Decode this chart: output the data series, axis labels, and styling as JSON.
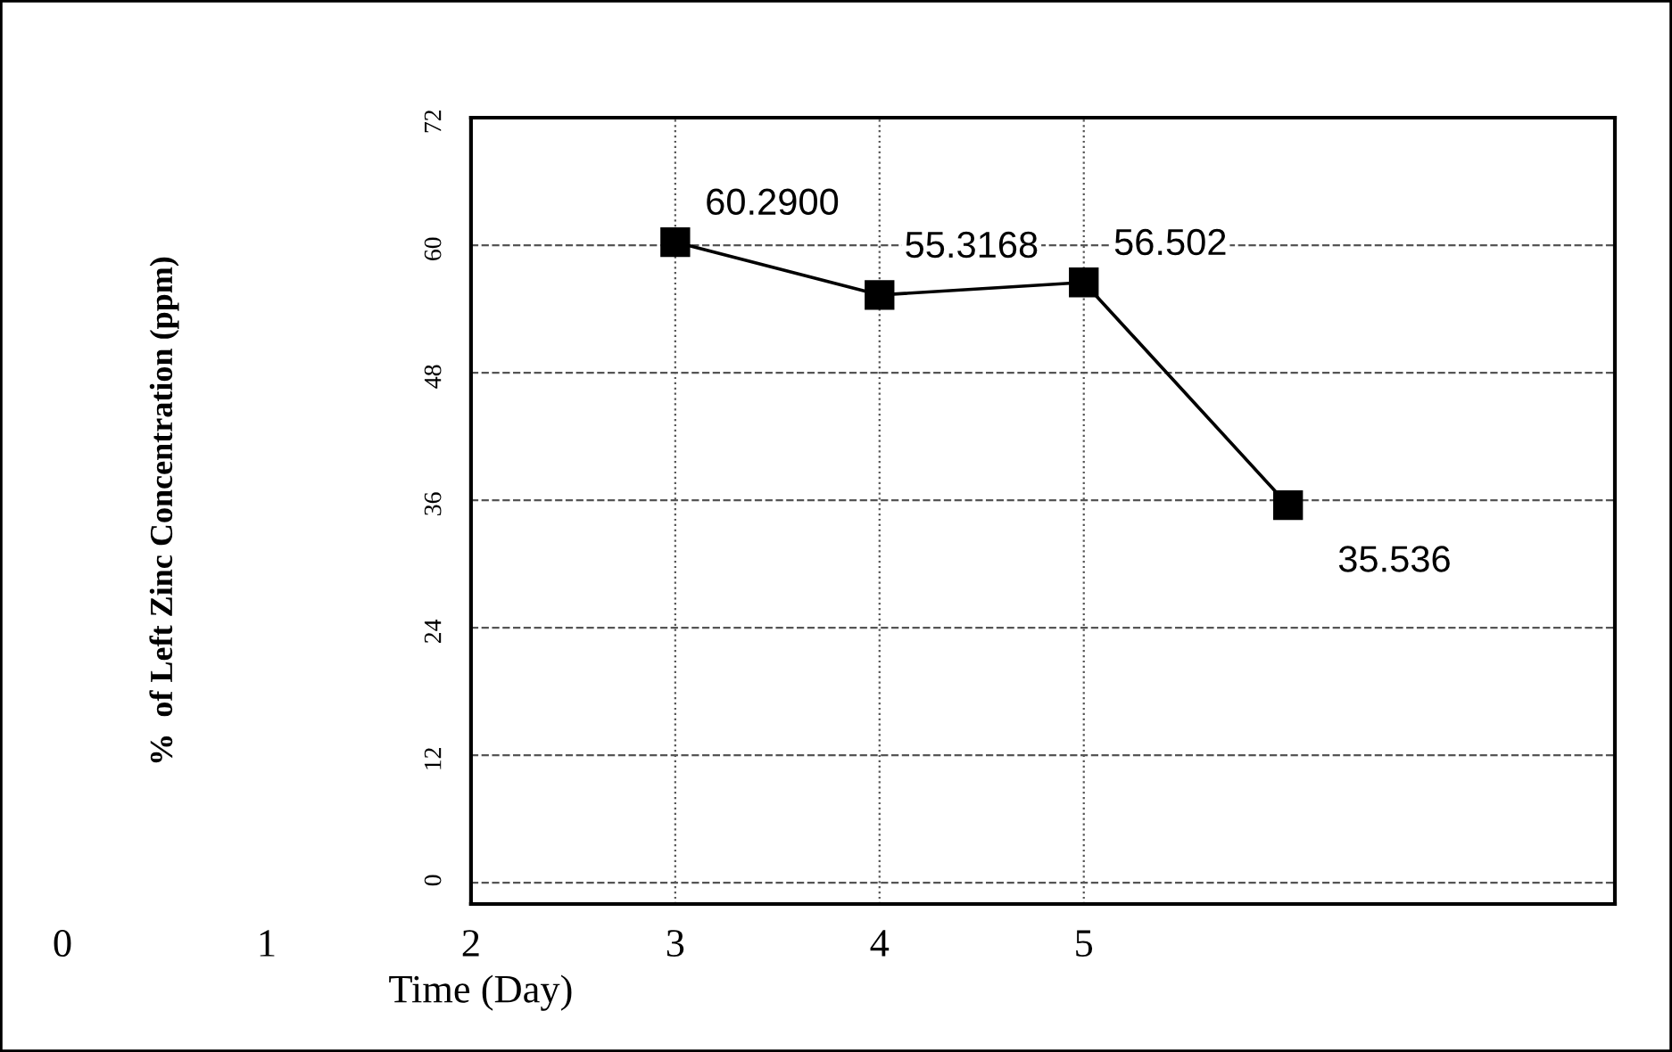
{
  "chart_data": {
    "type": "line",
    "xlabel": "Time (Day)",
    "ylabel": "%  of Left Zinc Concentration (ppm)",
    "x": [
      3,
      4,
      5,
      6
    ],
    "series": [
      {
        "color": "#000000",
        "values": [
          60.29,
          55.3168,
          56.502,
          35.536
        ],
        "value_labels": [
          "60.2900",
          "55.3168",
          "56.502",
          "35.536"
        ]
      }
    ],
    "xlim": [
      0,
      7.6
    ],
    "xticks": [
      0,
      1,
      2,
      3,
      4,
      5
    ],
    "ylim": [
      -2,
      72
    ],
    "yticks": [
      0,
      12,
      24,
      36,
      48,
      60,
      72
    ],
    "grid": true,
    "marker": "square",
    "line_style": "solid",
    "legend": false
  }
}
